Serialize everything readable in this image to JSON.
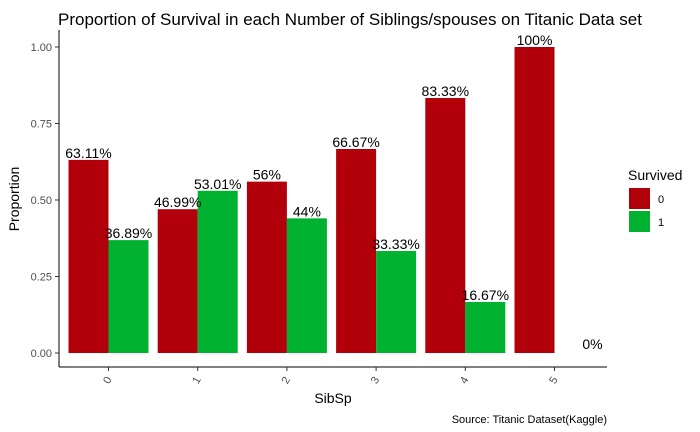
{
  "chart_data": {
    "type": "bar",
    "title": "Proportion of Survival in each Number of Siblings/spouses on Titanic Data set",
    "xlabel": "SibSp",
    "ylabel": "Proportion",
    "caption": "Source: Titanic Dataset(Kaggle)",
    "categories": [
      "0",
      "1",
      "2",
      "3",
      "4",
      "5"
    ],
    "y_ticks": [
      "0.00",
      "0.25",
      "0.50",
      "0.75",
      "1.00"
    ],
    "ylim": [
      0,
      1.0
    ],
    "grid": false,
    "legend": {
      "title": "Survived",
      "position": "right"
    },
    "series": [
      {
        "name": "0",
        "color": "#B2000A",
        "values": [
          0.6311,
          0.4699,
          0.56,
          0.6667,
          0.8333,
          1.0
        ],
        "labels": [
          "63.11%",
          "46.99%",
          "56%",
          "66.67%",
          "83.33%",
          "100%"
        ]
      },
      {
        "name": "1",
        "color": "#00B22F",
        "values": [
          0.3689,
          0.5301,
          0.44,
          0.3333,
          0.1667,
          0.0
        ],
        "labels": [
          "36.89%",
          "53.01%",
          "44%",
          "33.33%",
          "16.67%",
          "0%"
        ]
      }
    ]
  }
}
